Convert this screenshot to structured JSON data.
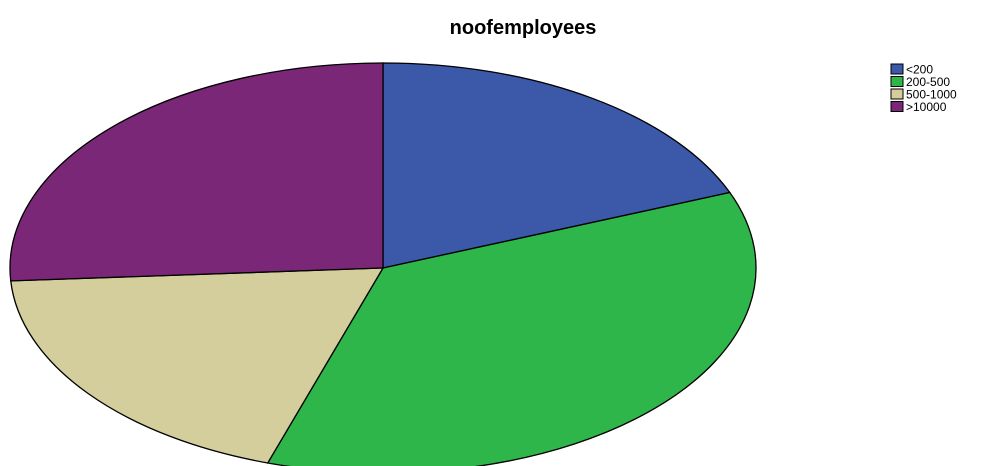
{
  "chart_data": {
    "type": "pie",
    "title": "noofemployees",
    "legend_position": "top-right",
    "slices": [
      {
        "label": "<200",
        "value": 19,
        "color": "#3c58a8"
      },
      {
        "label": "200-500",
        "value": 36,
        "color": "#2eb64a"
      },
      {
        "label": "500-1000",
        "value": 19,
        "color": "#d3ce9c"
      },
      {
        "label": ">10000",
        "value": 26,
        "color": "#7b2777"
      }
    ]
  }
}
